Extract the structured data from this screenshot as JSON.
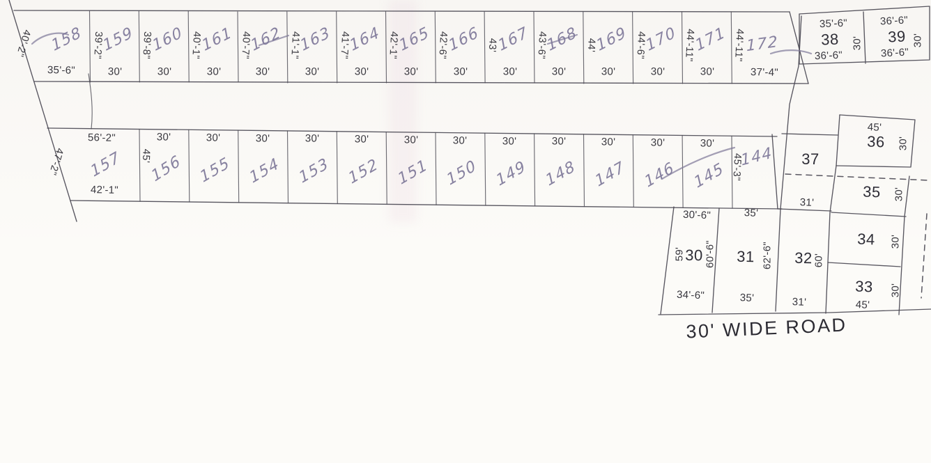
{
  "colors": {
    "paper": "#fcfbf8",
    "ink": "#39383f",
    "pencil": "#7e7899"
  },
  "road": {
    "label": "30' WIDE ROAD"
  },
  "row1": {
    "plots": [
      {
        "number": "158",
        "left": "40'-2\"",
        "bottom": "35'-6\""
      },
      {
        "number": "159",
        "left": "39'-2\"",
        "bottom": "30'"
      },
      {
        "number": "160",
        "left": "39'-8\"",
        "bottom": "30'"
      },
      {
        "number": "161",
        "left": "40'-1\"",
        "bottom": "30'"
      },
      {
        "number": "162",
        "left": "40'-7\"",
        "bottom": "30'"
      },
      {
        "number": "163",
        "left": "41'-1\"",
        "bottom": "30'"
      },
      {
        "number": "164",
        "left": "41'-7\"",
        "bottom": "30'"
      },
      {
        "number": "165",
        "left": "42'-1\"",
        "bottom": "30'"
      },
      {
        "number": "166",
        "left": "42'-6\"",
        "bottom": "30'"
      },
      {
        "number": "167",
        "left": "43'",
        "bottom": "30'"
      },
      {
        "number": "168",
        "left": "43'-6\"",
        "bottom": "30'"
      },
      {
        "number": "169",
        "left": "44'",
        "bottom": "30'"
      },
      {
        "number": "170",
        "left": "44'-6\"",
        "bottom": "30'"
      },
      {
        "number": "171",
        "left": "44'-11\"",
        "bottom": "30'"
      },
      {
        "number": "172",
        "left": "44'-11\"",
        "bottom": "37'-4\""
      }
    ]
  },
  "row2": {
    "plots": [
      {
        "number": "157",
        "top": "56'-2\"",
        "left": "47'-2\"",
        "bottom": "42'-1\""
      },
      {
        "number": "156",
        "top": "30'",
        "left": "45'"
      },
      {
        "number": "155",
        "top": "30'"
      },
      {
        "number": "154",
        "top": "30'"
      },
      {
        "number": "153",
        "top": "30'"
      },
      {
        "number": "152",
        "top": "30'"
      },
      {
        "number": "151",
        "top": "30'"
      },
      {
        "number": "150",
        "top": "30'"
      },
      {
        "number": "149",
        "top": "30'"
      },
      {
        "number": "148",
        "top": "30'"
      },
      {
        "number": "147",
        "top": "30'"
      },
      {
        "number": "146",
        "top": "30'"
      },
      {
        "number": "145",
        "top": "30'"
      },
      {
        "number": "144",
        "left": "45'-3\""
      }
    ]
  },
  "right_top": {
    "plots": [
      {
        "number": "38",
        "top": "35'-6\"",
        "right": "30'",
        "bottom": "36'-6\""
      },
      {
        "number": "39",
        "top": "36'-6\"",
        "right": "30'",
        "bottom": "36'-6\""
      }
    ]
  },
  "right_block": {
    "plots": [
      {
        "number": "37",
        "bottom": "31'"
      },
      {
        "number": "36",
        "top": "45'",
        "right": "30'"
      },
      {
        "number": "35",
        "right": "30'"
      },
      {
        "number": "34",
        "right": "30'"
      },
      {
        "number": "33",
        "right": "30'",
        "bottom": "45'"
      }
    ]
  },
  "lower_block": {
    "plots": [
      {
        "number": "30",
        "top": "30'-6\"",
        "left": "59'",
        "right": "60'-6\"",
        "bottom": "34'-6\""
      },
      {
        "number": "31",
        "top": "35'",
        "right": "62'-6\"",
        "bottom": "35'"
      },
      {
        "number": "32",
        "right": "60'",
        "bottom": "31'"
      }
    ]
  }
}
